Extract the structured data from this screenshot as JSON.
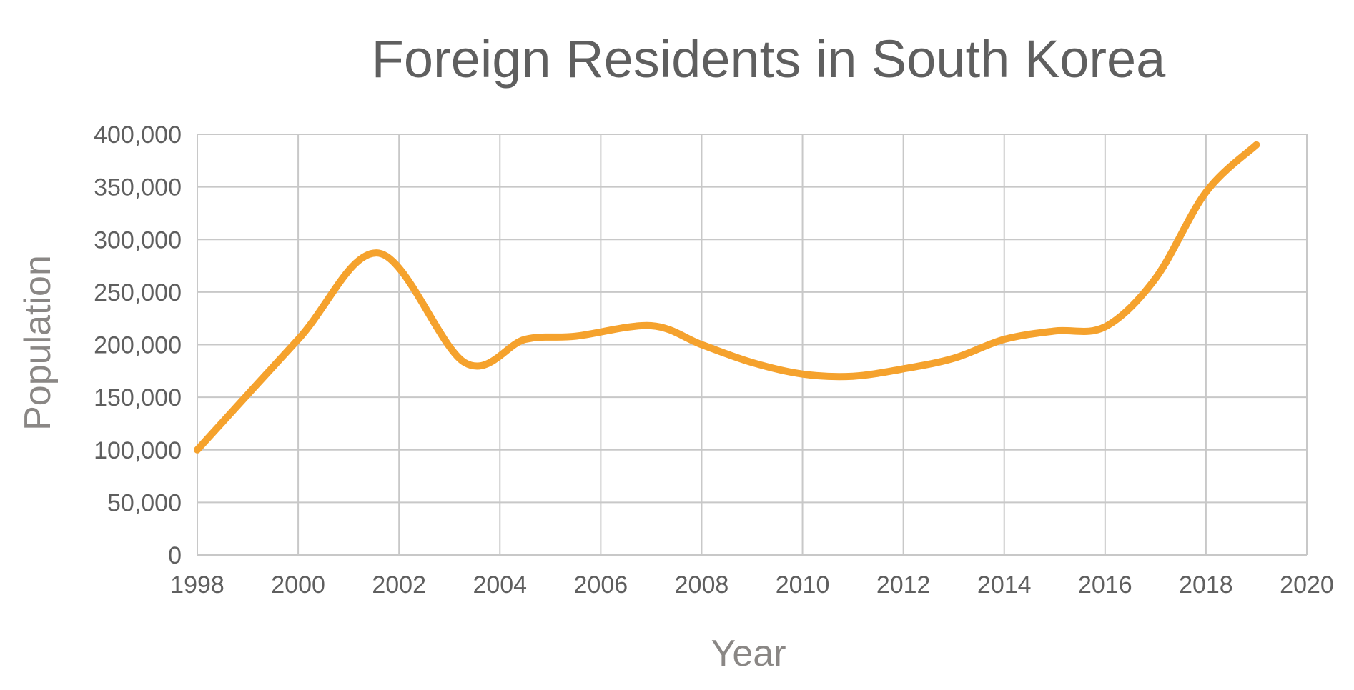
{
  "chart_data": {
    "type": "line",
    "title": "Foreign Residents in South Korea",
    "xlabel": "Year",
    "ylabel": "Population",
    "xlim": [
      1998,
      2020
    ],
    "ylim": [
      0,
      400000
    ],
    "x_ticks": [
      "1998",
      "2000",
      "2002",
      "2004",
      "2006",
      "2008",
      "2010",
      "2012",
      "2014",
      "2016",
      "2018",
      "2020"
    ],
    "y_ticks": [
      "0",
      "50,000",
      "100,000",
      "150,000",
      "200,000",
      "250,000",
      "300,000",
      "350,000",
      "400,000"
    ],
    "grid": true,
    "legend": "none",
    "series": [
      {
        "color": "#F5A22D",
        "x": [
          1998,
          2000,
          2001.6,
          2003.3,
          2004.5,
          2005.5,
          2007,
          2008,
          2009,
          2010,
          2011,
          2012,
          2013,
          2014,
          2015,
          2016,
          2017,
          2018,
          2019
        ],
        "y": [
          100000,
          205000,
          287000,
          183000,
          205000,
          208000,
          218000,
          200000,
          183000,
          172000,
          170000,
          177000,
          187000,
          205000,
          213000,
          217000,
          263000,
          345000,
          390000
        ]
      }
    ]
  }
}
